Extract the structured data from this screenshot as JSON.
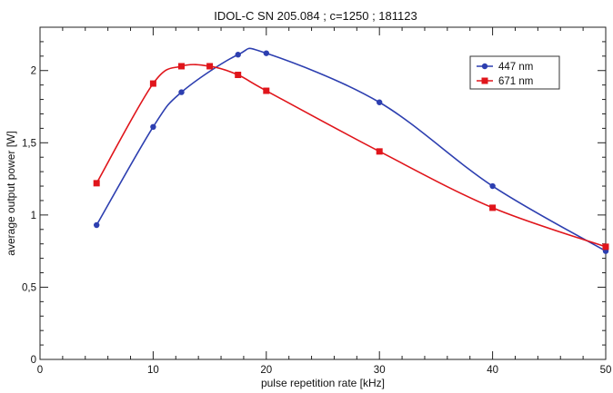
{
  "chart_data": {
    "type": "line",
    "title": "IDOL-C SN 205.084 ; c=1250 ; 181123",
    "xlabel": "pulse repetition rate  [kHz]",
    "ylabel": "average output power [W]",
    "xlim": [
      0,
      50
    ],
    "ylim": [
      0,
      2.3
    ],
    "x_ticks": [
      0,
      10,
      20,
      30,
      40,
      50
    ],
    "x_tick_labels": [
      "0",
      "10",
      "20",
      "30",
      "40",
      "50"
    ],
    "y_ticks": [
      0,
      0.5,
      1,
      1.5,
      2
    ],
    "y_tick_labels": [
      "0",
      "0,5",
      "1",
      "1,5",
      "2"
    ],
    "grid": false,
    "legend_position": "top-right",
    "series": [
      {
        "name": "447 nm",
        "color": "#2d3fb0",
        "marker": "circle",
        "x": [
          5,
          10,
          12.5,
          17.5,
          20,
          30,
          40,
          50
        ],
        "y": [
          0.93,
          1.61,
          1.85,
          2.11,
          2.12,
          1.78,
          1.2,
          0.75
        ]
      },
      {
        "name": "671 nm",
        "color": "#e0151b",
        "marker": "square",
        "x": [
          5,
          10,
          12.5,
          15,
          17.5,
          20,
          30,
          40,
          50
        ],
        "y": [
          1.22,
          1.91,
          2.03,
          2.03,
          1.97,
          1.86,
          1.44,
          1.05,
          0.78
        ]
      }
    ]
  }
}
